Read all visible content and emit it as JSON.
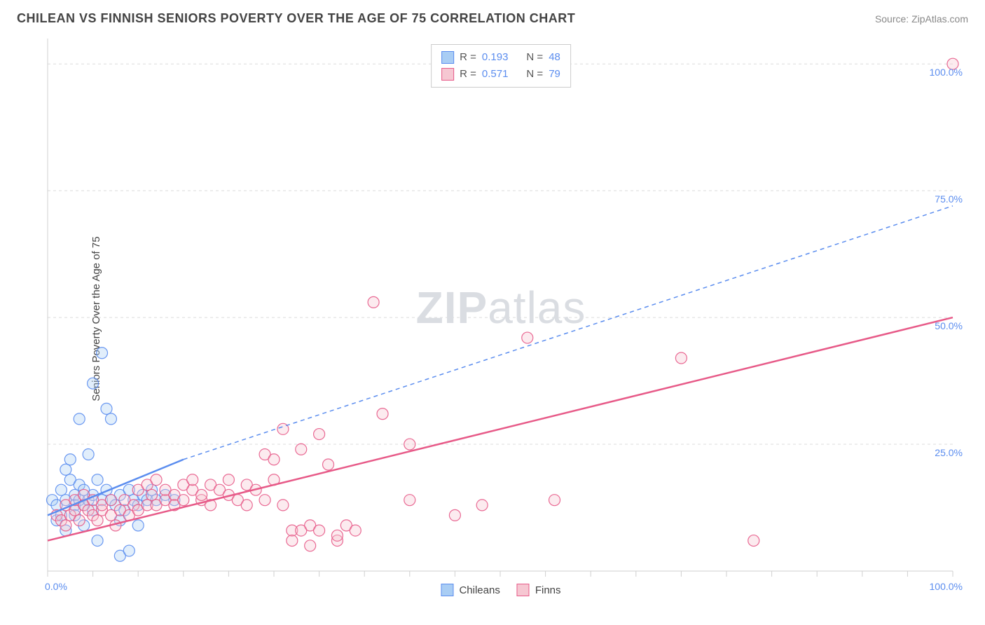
{
  "header": {
    "title": "CHILEAN VS FINNISH SENIORS POVERTY OVER THE AGE OF 75 CORRELATION CHART",
    "source_label": "Source: ZipAtlas.com"
  },
  "chart": {
    "type": "scatter",
    "ylabel": "Seniors Poverty Over the Age of 75",
    "background_color": "#ffffff",
    "grid_color": "#dcdcdc",
    "axis_color": "#cfcfcf",
    "tick_color": "#cfcfcf",
    "tick_label_color": "#5b8def",
    "xlim": [
      0,
      100
    ],
    "ylim": [
      0,
      105
    ],
    "y_gridlines": [
      25,
      50,
      75,
      100
    ],
    "y_tick_labels": [
      "25.0%",
      "50.0%",
      "75.0%",
      "100.0%"
    ],
    "x_minor_ticks": [
      0,
      5,
      10,
      15,
      20,
      25,
      30,
      35,
      40,
      45,
      50,
      55,
      60,
      65,
      70,
      75,
      80,
      85,
      90,
      95,
      100
    ],
    "x_origin_label": "0.0%",
    "x_end_label": "100.0%",
    "watermark_prefix": "ZIP",
    "watermark_suffix": "atlas",
    "marker_radius": 8,
    "marker_opacity": 0.35,
    "series": [
      {
        "name": "Chileans",
        "color_fill": "#a9cdf4",
        "color_stroke": "#5b8def",
        "stats": {
          "R": "0.193",
          "N": "48"
        },
        "regression": {
          "solid": {
            "x1": 0,
            "y1": 11,
            "x2": 15,
            "y2": 22
          },
          "dashed": {
            "x1": 15,
            "y1": 22,
            "x2": 100,
            "y2": 72
          },
          "stroke_width": 2.5
        },
        "points": [
          [
            0.5,
            14
          ],
          [
            1,
            13
          ],
          [
            1,
            10
          ],
          [
            1.5,
            16
          ],
          [
            1.5,
            11
          ],
          [
            2,
            20
          ],
          [
            2,
            14
          ],
          [
            2,
            8
          ],
          [
            2.5,
            18
          ],
          [
            2.5,
            22
          ],
          [
            3,
            15
          ],
          [
            3,
            13
          ],
          [
            3,
            11
          ],
          [
            3.5,
            17
          ],
          [
            3.5,
            30
          ],
          [
            3.5,
            14
          ],
          [
            4,
            13
          ],
          [
            4,
            16
          ],
          [
            4,
            9
          ],
          [
            4.5,
            23
          ],
          [
            4.5,
            14
          ],
          [
            5,
            15
          ],
          [
            5,
            37
          ],
          [
            5,
            12
          ],
          [
            5.5,
            18
          ],
          [
            5.5,
            6
          ],
          [
            6,
            14
          ],
          [
            6,
            43
          ],
          [
            6.5,
            16
          ],
          [
            6.5,
            32
          ],
          [
            7,
            14
          ],
          [
            7,
            30
          ],
          [
            7.5,
            13
          ],
          [
            8,
            15
          ],
          [
            8,
            3
          ],
          [
            8,
            10
          ],
          [
            8.5,
            12
          ],
          [
            9,
            16
          ],
          [
            9,
            4
          ],
          [
            9.5,
            14
          ],
          [
            10,
            13
          ],
          [
            10,
            9
          ],
          [
            10.5,
            15
          ],
          [
            11,
            14
          ],
          [
            11.5,
            16
          ],
          [
            12,
            14
          ],
          [
            13,
            15
          ],
          [
            14,
            14
          ]
        ]
      },
      {
        "name": "Finns",
        "color_fill": "#f6c7d2",
        "color_stroke": "#e75a88",
        "stats": {
          "R": "0.571",
          "N": "79"
        },
        "regression": {
          "solid": {
            "x1": 0,
            "y1": 6,
            "x2": 100,
            "y2": 50
          },
          "dashed": null,
          "stroke_width": 2.5
        },
        "points": [
          [
            1,
            11
          ],
          [
            1.5,
            10
          ],
          [
            2,
            13
          ],
          [
            2,
            9
          ],
          [
            2.5,
            11
          ],
          [
            3,
            12
          ],
          [
            3,
            14
          ],
          [
            3.5,
            10
          ],
          [
            4,
            13
          ],
          [
            4,
            15
          ],
          [
            4.5,
            12
          ],
          [
            5,
            11
          ],
          [
            5,
            14
          ],
          [
            5.5,
            10
          ],
          [
            6,
            12
          ],
          [
            6,
            13
          ],
          [
            7,
            14
          ],
          [
            7,
            11
          ],
          [
            7.5,
            9
          ],
          [
            8,
            12
          ],
          [
            8.5,
            14
          ],
          [
            9,
            11
          ],
          [
            9.5,
            13
          ],
          [
            10,
            12
          ],
          [
            10,
            16
          ],
          [
            11,
            13
          ],
          [
            11,
            17
          ],
          [
            11.5,
            15
          ],
          [
            12,
            13
          ],
          [
            12,
            18
          ],
          [
            13,
            14
          ],
          [
            13,
            16
          ],
          [
            14,
            15
          ],
          [
            14,
            13
          ],
          [
            15,
            17
          ],
          [
            15,
            14
          ],
          [
            16,
            16
          ],
          [
            16,
            18
          ],
          [
            17,
            14
          ],
          [
            17,
            15
          ],
          [
            18,
            13
          ],
          [
            18,
            17
          ],
          [
            19,
            16
          ],
          [
            20,
            18
          ],
          [
            20,
            15
          ],
          [
            21,
            14
          ],
          [
            22,
            13
          ],
          [
            22,
            17
          ],
          [
            23,
            16
          ],
          [
            24,
            14
          ],
          [
            24,
            23
          ],
          [
            25,
            22
          ],
          [
            25,
            18
          ],
          [
            26,
            13
          ],
          [
            26,
            28
          ],
          [
            27,
            8
          ],
          [
            27,
            6
          ],
          [
            28,
            24
          ],
          [
            28,
            8
          ],
          [
            29,
            9
          ],
          [
            29,
            5
          ],
          [
            30,
            27
          ],
          [
            30,
            8
          ],
          [
            31,
            21
          ],
          [
            32,
            6
          ],
          [
            32,
            7
          ],
          [
            33,
            9
          ],
          [
            34,
            8
          ],
          [
            36,
            53
          ],
          [
            37,
            31
          ],
          [
            40,
            25
          ],
          [
            40,
            14
          ],
          [
            45,
            11
          ],
          [
            48,
            13
          ],
          [
            53,
            46
          ],
          [
            56,
            14
          ],
          [
            70,
            42
          ],
          [
            78,
            6
          ],
          [
            100,
            100
          ]
        ]
      }
    ],
    "legend_bottom": [
      {
        "label": "Chileans",
        "fill": "#a9cdf4",
        "stroke": "#5b8def"
      },
      {
        "label": "Finns",
        "fill": "#f6c7d2",
        "stroke": "#e75a88"
      }
    ],
    "stats_box": {
      "rows": [
        {
          "fill": "#a9cdf4",
          "stroke": "#5b8def",
          "r_label": "R =",
          "r_val": "0.193",
          "n_label": "N =",
          "n_val": "48"
        },
        {
          "fill": "#f6c7d2",
          "stroke": "#e75a88",
          "r_label": "R =",
          "r_val": "0.571",
          "n_label": "N =",
          "n_val": "79"
        }
      ]
    }
  }
}
